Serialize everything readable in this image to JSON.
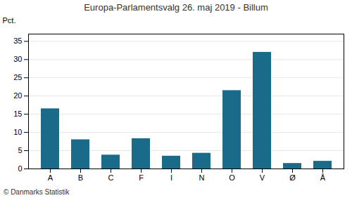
{
  "chart_data": {
    "type": "bar",
    "title": "Europa-Parlamentsvalg 26. maj 2019 - Billum",
    "ylabel": "Pct.",
    "annotations": [
      "© Danmarks Statistik"
    ],
    "categories": [
      "A",
      "B",
      "C",
      "F",
      "I",
      "N",
      "O",
      "V",
      "Ø",
      "Å"
    ],
    "values": [
      16.5,
      8.0,
      3.8,
      8.3,
      3.5,
      4.3,
      21.5,
      32.0,
      1.5,
      2.1
    ],
    "color": "#1a6b8a",
    "ylim": [
      0,
      37
    ],
    "yticks": [
      0,
      5,
      10,
      15,
      20,
      25,
      30,
      35
    ],
    "grid": true
  }
}
